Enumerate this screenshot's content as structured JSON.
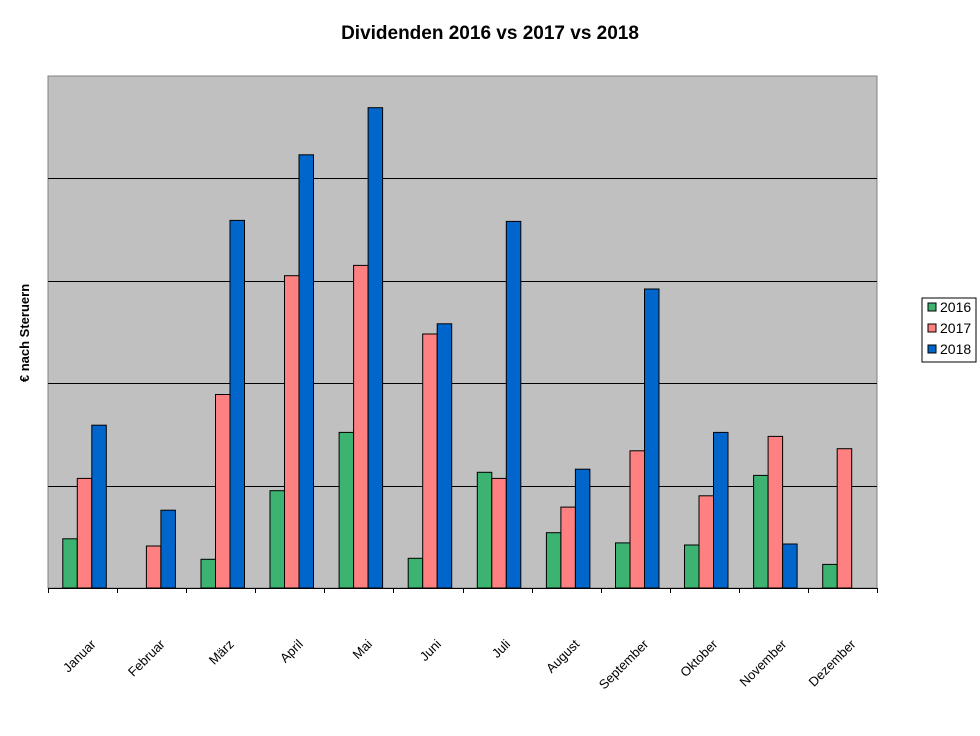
{
  "chart_data": {
    "type": "bar",
    "title": "Dividenden 2016 vs 2017 vs 2018",
    "ylabel": "€ nach Steruern",
    "xlabel": "",
    "categories": [
      "Januar",
      "Februar",
      "März",
      "April",
      "Mai",
      "Juni",
      "Juli",
      "August",
      "September",
      "Oktober",
      "November",
      "Dezember"
    ],
    "ylim": [
      0,
      500
    ],
    "gridlines": [
      100,
      200,
      300,
      400
    ],
    "y_ticks_labeled": false,
    "legend_position": "right",
    "series": [
      {
        "name": "2016",
        "color": "#3cb371",
        "values": [
          48,
          0,
          28,
          95,
          152,
          29,
          113,
          54,
          44,
          42,
          110,
          23
        ]
      },
      {
        "name": "2017",
        "color": "#ff8080",
        "values": [
          107,
          41,
          189,
          305,
          315,
          248,
          107,
          79,
          134,
          90,
          148,
          136
        ]
      },
      {
        "name": "2018",
        "color": "#0066cc",
        "values": [
          159,
          76,
          359,
          423,
          469,
          258,
          358,
          116,
          292,
          152,
          43,
          0
        ]
      }
    ]
  }
}
